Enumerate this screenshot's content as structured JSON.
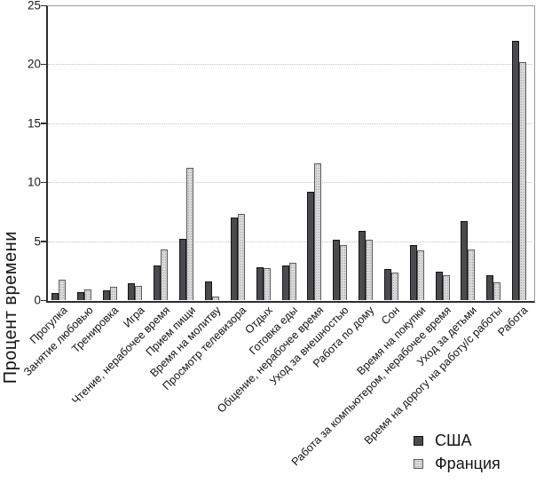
{
  "chart_data": {
    "type": "bar",
    "title": "",
    "xlabel": "",
    "ylabel": "Процент времени",
    "ylim": [
      0,
      25
    ],
    "yticks": [
      0,
      5,
      10,
      15,
      20,
      25
    ],
    "grid": true,
    "legend_position": "bottom-right",
    "categories": [
      "Прогулка",
      "Занятие любовью",
      "Тренировка",
      "Игра",
      "Чтение, нерабочее время",
      "Прием пищи",
      "Время на молитву",
      "Просмотр телевизора",
      "Отдых",
      "Готовка еды",
      "Общение, нерабочее время",
      "Уход за внешностью",
      "Работа по дому",
      "Сон",
      "Время на покупки",
      "Работа за компьютером, нерабочее время",
      "Уход за детьми",
      "Время на дорогу на работу/с работы",
      "Работа"
    ],
    "series": [
      {
        "name": "США",
        "color": "#4a4a4f",
        "values": [
          0.6,
          0.7,
          0.8,
          1.4,
          2.9,
          5.2,
          1.6,
          7.0,
          2.8,
          2.9,
          9.2,
          5.1,
          5.9,
          2.6,
          4.7,
          2.4,
          6.7,
          2.1,
          22.0
        ]
      },
      {
        "name": "Франция",
        "color": "#d8d8d8",
        "values": [
          1.7,
          0.9,
          1.1,
          1.2,
          4.3,
          11.2,
          0.3,
          7.3,
          2.7,
          3.2,
          11.6,
          4.7,
          5.1,
          2.3,
          4.2,
          2.1,
          4.3,
          1.5,
          20.2
        ]
      }
    ]
  }
}
